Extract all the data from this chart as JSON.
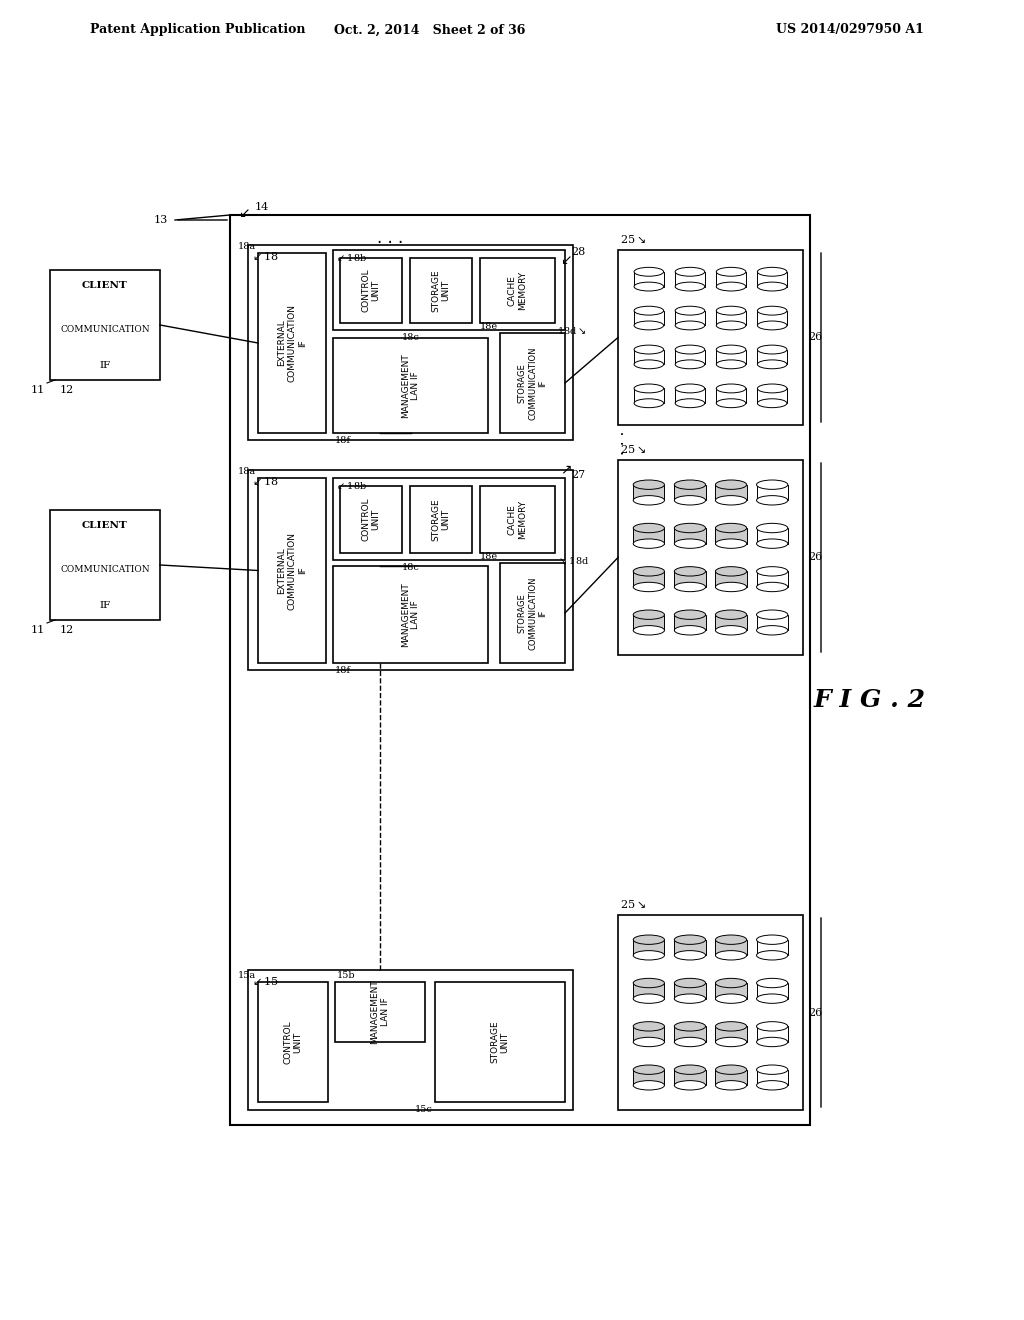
{
  "header_left": "Patent Application Publication",
  "header_mid": "Oct. 2, 2014   Sheet 2 of 36",
  "header_right": "US 2014/0297950 A1",
  "fig_label": "F I G . 2",
  "bg_color": "#ffffff",
  "line_color": "#000000",
  "text_color": "#000000"
}
